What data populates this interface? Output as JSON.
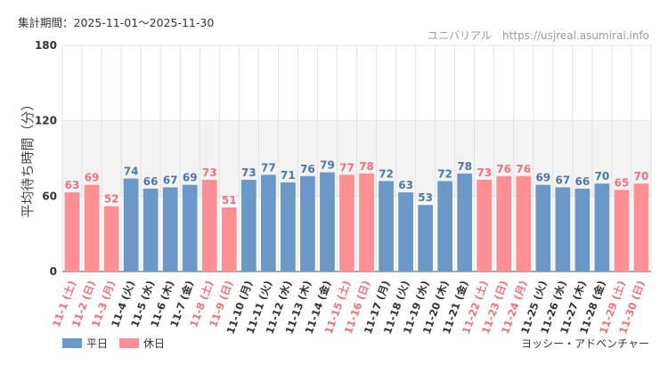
{
  "header": {
    "period_label": "集計期間：2025-11-01～2025-11-30",
    "credit": "ユニバリアル　https://usjreal.asumirai.info"
  },
  "footer": {
    "attraction": "ヨッシー・アドベンチャー"
  },
  "colors": {
    "weekday": "#6a98c9",
    "holiday": "#ff8f93",
    "weekday_text": "#4a78ad",
    "holiday_text": "#f5707a",
    "weekday_tick": "#333333",
    "band": "#f3f3f3",
    "grid": "#e2e2e2"
  },
  "chart_data": {
    "type": "bar",
    "title": "",
    "xlabel": "",
    "ylabel": "平均待ち時間（分）",
    "ylim": [
      0,
      180
    ],
    "yticks": [
      0,
      60,
      120,
      180
    ],
    "highlight_band": [
      60,
      120
    ],
    "grid": true,
    "legend_position": "bottom-left",
    "series": [
      {
        "name": "平日",
        "key": "weekday"
      },
      {
        "name": "休日",
        "key": "holiday"
      }
    ],
    "categories": [
      "11-1 (土)",
      "11-2 (日)",
      "11-3 (月)",
      "11-4 (火)",
      "11-5 (水)",
      "11-6 (木)",
      "11-7 (金)",
      "11-8 (土)",
      "11-9 (日)",
      "11-10 (月)",
      "11-11 (火)",
      "11-12 (水)",
      "11-13 (木)",
      "11-14 (金)",
      "11-15 (土)",
      "11-16 (日)",
      "11-17 (月)",
      "11-18 (火)",
      "11-19 (水)",
      "11-20 (木)",
      "11-21 (金)",
      "11-22 (土)",
      "11-23 (日)",
      "11-24 (月)",
      "11-25 (火)",
      "11-26 (水)",
      "11-27 (木)",
      "11-28 (金)",
      "11-29 (土)",
      "11-30 (日)"
    ],
    "values": [
      63,
      69,
      52,
      74,
      66,
      67,
      69,
      73,
      51,
      73,
      77,
      71,
      76,
      79,
      77,
      78,
      72,
      63,
      53,
      72,
      78,
      73,
      76,
      76,
      69,
      67,
      66,
      70,
      65,
      70
    ],
    "types": [
      "holiday",
      "holiday",
      "holiday",
      "weekday",
      "weekday",
      "weekday",
      "weekday",
      "holiday",
      "holiday",
      "weekday",
      "weekday",
      "weekday",
      "weekday",
      "weekday",
      "holiday",
      "holiday",
      "weekday",
      "weekday",
      "weekday",
      "weekday",
      "weekday",
      "holiday",
      "holiday",
      "holiday",
      "weekday",
      "weekday",
      "weekday",
      "weekday",
      "holiday",
      "holiday"
    ]
  }
}
